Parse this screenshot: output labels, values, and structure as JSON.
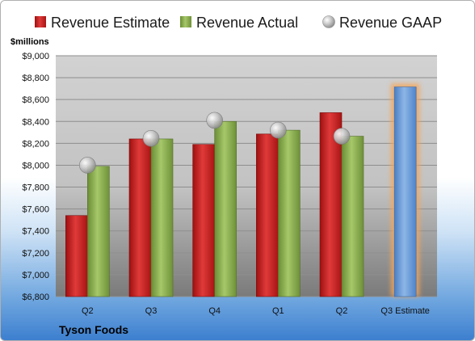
{
  "chart_data": {
    "type": "bar",
    "ylabel": "$millions",
    "company": "Tyson Foods",
    "categories": [
      "Q2",
      "Q3",
      "Q4",
      "Q1",
      "Q2",
      "Q3 Estimate"
    ],
    "ylim": [
      6800,
      9000
    ],
    "yticks": [
      6800,
      7000,
      7200,
      7400,
      7600,
      7800,
      8000,
      8200,
      8400,
      8600,
      8800,
      9000
    ],
    "ytick_labels": [
      "$6,800",
      "$7,000",
      "$7,200",
      "$7,400",
      "$7,600",
      "$7,800",
      "$8,000",
      "$8,200",
      "$8,400",
      "$8,600",
      "$8,800",
      "$9,000"
    ],
    "series": [
      {
        "name": "Revenue Estimate",
        "kind": "bar",
        "color": "#cc1f1f",
        "values": [
          7540,
          8240,
          8190,
          8285,
          8480,
          null
        ]
      },
      {
        "name": "Revenue Actual",
        "kind": "bar",
        "color": "#8db050",
        "values": [
          7990,
          8240,
          8400,
          8320,
          8265,
          null
        ]
      },
      {
        "name": "Revenue GAAP",
        "kind": "point",
        "color": "#b8b8b8",
        "values": [
          8000,
          8245,
          8410,
          8320,
          8265,
          null
        ]
      },
      {
        "name": "",
        "kind": "highlight-bar",
        "color": "#6f9fd8",
        "values": [
          null,
          null,
          null,
          null,
          null,
          8715
        ]
      }
    ],
    "legend": "top",
    "grid": true
  }
}
